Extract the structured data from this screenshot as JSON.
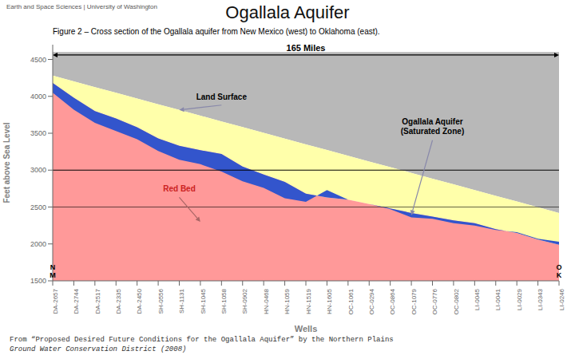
{
  "chart_data": {
    "type": "area",
    "title": "Ogallala Aquifer",
    "subtitle": "Figure 2 – Cross section of the Ogallala aquifer from New Mexico (west) to Oklahoma (east).",
    "footnote": [
      "From “Proposed Desired Future Conditions for the Ogallala Aquifer” by the Northern Plains",
      "Ground Water Conservation District (2008)"
    ],
    "banner": "Earth and Space Sciences | University of Washington",
    "xlabel": "Wells",
    "ylabel": "Feet above Sea Level",
    "categories": [
      "DA-2657",
      "DA-2744",
      "DA-2517",
      "DA-2335",
      "DA-2450",
      "SH-0556",
      "SH-1131",
      "SH-1045",
      "SH-1058",
      "SH-0902",
      "HN-0468",
      "HN-1059",
      "HN-1519",
      "HN-1605",
      "OC-1061",
      "OC-0294",
      "OC-0864",
      "OC-1079",
      "OC-0776",
      "OC-0802",
      "LI-0045",
      "LI-0041",
      "LI-0029",
      "LI-0343",
      "LI-0246"
    ],
    "series": [
      {
        "color": "#b8b8b8",
        "lower": [
          4280,
          4202.5,
          4125,
          4047.5,
          3970,
          3892.5,
          3815,
          3737.5,
          3660,
          3582.5,
          3505,
          3427.5,
          3350,
          3272.5,
          3195,
          3117.5,
          3040,
          2962.5,
          2885,
          2807.5,
          2730,
          2652.5,
          2575,
          2497.5,
          2420
        ],
        "upper": 4600
      },
      {
        "color": "#ffffaa",
        "lower": [
          4180,
          3980,
          3800,
          3700,
          3580,
          3430,
          3330,
          3270,
          3220,
          3050,
          2940,
          2840,
          2680,
          2630,
          2600,
          2540,
          2480,
          2420,
          2370,
          2320,
          2280,
          2200,
          2150,
          2060,
          1990
        ],
        "upper": [
          4280,
          4202.5,
          4125,
          4047.5,
          3970,
          3892.5,
          3815,
          3737.5,
          3660,
          3582.5,
          3505,
          3427.5,
          3350,
          3272.5,
          3195,
          3117.5,
          3040,
          2962.5,
          2885,
          2807.5,
          2730,
          2652.5,
          2575,
          2497.5,
          2420
        ]
      },
      {
        "color": "#ff9999",
        "lower": 1500,
        "upper": [
          4180,
          3980,
          3800,
          3700,
          3580,
          3430,
          3330,
          3270,
          3220,
          3050,
          2940,
          2840,
          2680,
          2630,
          2600,
          2540,
          2480,
          2420,
          2370,
          2320,
          2280,
          2200,
          2150,
          2060,
          1990
        ]
      },
      {
        "color": "#3355cc",
        "lower": [
          4050,
          3820,
          3640,
          3530,
          3420,
          3260,
          3140,
          3080,
          2980,
          2850,
          2760,
          2620,
          2570,
          2730,
          2600,
          2540,
          2470,
          2360,
          2340,
          2280,
          2250,
          2190,
          2160,
          2070,
          2030
        ],
        "upper": [
          4180,
          3980,
          3800,
          3700,
          3580,
          3430,
          3330,
          3270,
          3220,
          3050,
          2940,
          2840,
          2680,
          2630,
          2600,
          2540,
          2480,
          2420,
          2370,
          2320,
          2280,
          2200,
          2150,
          2060,
          1990
        ]
      }
    ],
    "ylim": [
      1500,
      4700
    ],
    "yticks": [
      1500,
      2000,
      2500,
      3000,
      3500,
      4000,
      4500
    ],
    "reference_lines": [
      3000,
      2500
    ],
    "span_arrow": {
      "text": "165 Miles",
      "y": 4560
    },
    "annotations": [
      {
        "text": "N\nM",
        "x": "DA-2657",
        "y": 1500
      },
      {
        "text": "O\nK",
        "x": "LI-0246",
        "y": 1500
      },
      {
        "text": "Land Surface",
        "x": "SH-1058",
        "y": 4000,
        "arrow_to": {
          "x": "SH-1131",
          "y": 3815
        }
      },
      {
        "text": "Ogallala Aquifer\n(Saturated Zone)",
        "x": "OC-0776",
        "y": 3600,
        "arrow_to": {
          "x": "OC-1079",
          "y": 2390
        }
      },
      {
        "text": "Red Bed",
        "x": "SH-1131",
        "y": 2750,
        "arrow_to": {
          "x": "SH-1045",
          "y": 2300
        },
        "color": "#cc2222"
      }
    ],
    "grid": false
  }
}
